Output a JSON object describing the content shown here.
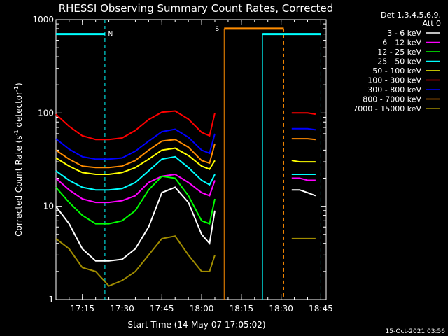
{
  "chart_data": {
    "type": "line",
    "title": "RHESSI Observing Summary Count Rates, Corrected",
    "xlabel": "Start Time (14-May-07 17:05:02)",
    "ylabel_main": "Corrected Count Rate (s",
    "ylabel_sup1": "-1",
    "ylabel_mid": " detector",
    "ylabel_sup2": "-1",
    "ylabel_end": ")",
    "yscale": "log",
    "ylim": [
      1,
      1000
    ],
    "xlim": [
      "17:05:02",
      "18:47:00"
    ],
    "x_ticks": [
      "17:15",
      "17:30",
      "17:45",
      "18:00",
      "18:15",
      "18:30",
      "18:45"
    ],
    "y_ticks": [
      "1",
      "10",
      "100",
      "1000"
    ],
    "legend_header_1": "Det 1,3,4,5,6,9,",
    "legend_header_2": "Att 0",
    "legend_placement": "right",
    "timestamp": "15-Oct-2021 03:56",
    "series": [
      {
        "name": "3 - 6 keV",
        "color": "#ffffff",
        "x": [
          "17:05",
          "17:10",
          "17:15",
          "17:20",
          "17:25",
          "17:30",
          "17:35",
          "17:40",
          "17:45",
          "17:50",
          "17:55",
          "18:00",
          "18:03",
          "18:05",
          "18:34",
          "18:37",
          "18:40",
          "18:43"
        ],
        "y": [
          10,
          6.5,
          3.5,
          2.6,
          2.6,
          2.7,
          3.5,
          6,
          14,
          16,
          11,
          5,
          4,
          9,
          15,
          15,
          14,
          13
        ]
      },
      {
        "name": "6 - 12 keV",
        "color": "#ff00ff",
        "x": [
          "17:05",
          "17:10",
          "17:15",
          "17:20",
          "17:25",
          "17:30",
          "17:35",
          "17:40",
          "17:45",
          "17:50",
          "17:55",
          "18:00",
          "18:03",
          "18:05",
          "18:34",
          "18:37",
          "18:40",
          "18:43"
        ],
        "y": [
          20,
          15,
          12,
          11,
          11,
          11.5,
          13,
          18,
          21,
          22,
          18,
          14,
          13,
          19,
          20,
          20,
          19,
          19
        ]
      },
      {
        "name": "12 - 25 keV",
        "color": "#00ff00",
        "x": [
          "17:05",
          "17:10",
          "17:15",
          "17:20",
          "17:25",
          "17:30",
          "17:35",
          "17:40",
          "17:45",
          "17:50",
          "17:55",
          "18:00",
          "18:03",
          "18:05"
        ],
        "y": [
          16,
          11,
          8,
          6.5,
          6.5,
          7,
          9,
          15,
          21,
          20,
          13,
          7,
          6.5,
          12
        ]
      },
      {
        "name": "25 - 50 keV",
        "color": "#00ffff",
        "x": [
          "17:05",
          "17:10",
          "17:15",
          "17:20",
          "17:25",
          "17:30",
          "17:35",
          "17:40",
          "17:45",
          "17:50",
          "17:55",
          "18:00",
          "18:03",
          "18:05",
          "18:34",
          "18:37",
          "18:40",
          "18:43"
        ],
        "y": [
          24,
          19,
          16,
          15,
          15,
          15.5,
          18,
          24,
          32,
          34,
          26,
          19,
          17,
          22,
          22,
          22,
          22,
          22
        ]
      },
      {
        "name": "50 - 100 keV",
        "color": "#ffff00",
        "x": [
          "17:05",
          "17:10",
          "17:15",
          "17:20",
          "17:25",
          "17:30",
          "17:35",
          "17:40",
          "17:45",
          "17:50",
          "17:55",
          "18:00",
          "18:03",
          "18:05",
          "18:34",
          "18:37",
          "18:40",
          "18:43"
        ],
        "y": [
          33,
          27,
          23,
          22,
          22,
          23,
          26,
          32,
          40,
          42,
          35,
          27,
          25,
          31,
          31,
          30,
          30,
          30
        ]
      },
      {
        "name": "100 - 300 keV",
        "color": "#ff0000",
        "x": [
          "17:05",
          "17:10",
          "17:15",
          "17:20",
          "17:25",
          "17:30",
          "17:35",
          "17:40",
          "17:45",
          "17:50",
          "17:55",
          "18:00",
          "18:03",
          "18:05",
          "18:34",
          "18:37",
          "18:40",
          "18:43"
        ],
        "y": [
          97,
          72,
          57,
          52,
          52,
          54,
          65,
          85,
          102,
          105,
          86,
          62,
          57,
          100,
          100,
          100,
          100,
          97
        ]
      },
      {
        "name": "300 - 800 keV",
        "color": "#0000ff",
        "x": [
          "17:05",
          "17:10",
          "17:15",
          "17:20",
          "17:25",
          "17:30",
          "17:35",
          "17:40",
          "17:45",
          "17:50",
          "17:55",
          "18:00",
          "18:03",
          "18:05",
          "18:34",
          "18:37",
          "18:40",
          "18:43"
        ],
        "y": [
          53,
          41,
          34,
          32,
          32,
          33,
          39,
          50,
          63,
          67,
          55,
          40,
          37,
          60,
          68,
          68,
          68,
          66
        ]
      },
      {
        "name": "800 - 7000 keV",
        "color": "#ff8c00",
        "x": [
          "17:05",
          "17:10",
          "17:15",
          "17:20",
          "17:25",
          "17:30",
          "17:35",
          "17:40",
          "17:45",
          "17:50",
          "17:55",
          "18:00",
          "18:03",
          "18:05",
          "18:34",
          "18:37",
          "18:40",
          "18:43"
        ],
        "y": [
          40,
          32,
          27,
          26,
          26,
          27,
          31,
          40,
          50,
          52,
          43,
          31,
          29,
          47,
          53,
          53,
          53,
          52
        ]
      },
      {
        "name": "7000 - 15000 keV",
        "color": "#a08c00",
        "x": [
          "17:05",
          "17:10",
          "17:15",
          "17:20",
          "17:25",
          "17:30",
          "17:35",
          "17:40",
          "17:45",
          "17:50",
          "17:55",
          "18:00",
          "18:03",
          "18:05",
          "18:34",
          "18:37",
          "18:40",
          "18:43"
        ],
        "y": [
          4.5,
          3.5,
          2.2,
          2,
          1.4,
          1.6,
          2,
          3,
          4.5,
          4.8,
          3,
          2,
          2,
          3,
          4.5,
          4.5,
          4.5,
          4.5
        ]
      }
    ],
    "annotations": [
      {
        "label": "N",
        "color": "#00ffff",
        "bar_y": 700,
        "bar_x": [
          "17:05:02",
          "17:23:30"
        ],
        "line_x": "17:23:30"
      },
      {
        "label": "S",
        "color": "#ff8c00",
        "bar_y": 800,
        "bar_x": [
          "18:08:30",
          "18:31:00"
        ],
        "line_x_solid": "18:08:30",
        "line_x_dashed": "18:31:00"
      },
      {
        "label": "",
        "color": "#00ffff",
        "bar_y": 700,
        "bar_x": [
          "18:23:00",
          "18:45:00"
        ],
        "line_x_solid": "18:23:00",
        "line_x_dashed": "18:45:00"
      }
    ]
  }
}
